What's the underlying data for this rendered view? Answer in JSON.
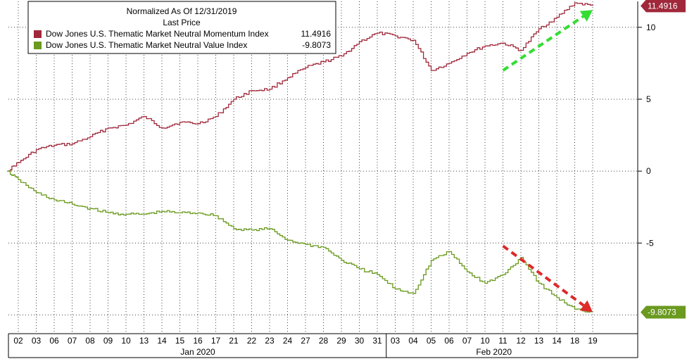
{
  "chart_data": {
    "type": "line",
    "legend": {
      "title": "Normalized As Of 12/31/2019",
      "subtitle": "Last Price",
      "placement": "top-left"
    },
    "x_tick_labels": [
      "02",
      "03",
      "06",
      "07",
      "08",
      "09",
      "10",
      "13",
      "14",
      "15",
      "16",
      "17",
      "21",
      "22",
      "23",
      "24",
      "27",
      "28",
      "29",
      "30",
      "31",
      "03",
      "04",
      "05",
      "06",
      "07",
      "10",
      "11",
      "12",
      "13",
      "14",
      "18",
      "19"
    ],
    "x_tick_dates": [
      "2020-01-02",
      "2020-01-03",
      "2020-01-06",
      "2020-01-07",
      "2020-01-08",
      "2020-01-09",
      "2020-01-10",
      "2020-01-13",
      "2020-01-14",
      "2020-01-15",
      "2020-01-16",
      "2020-01-17",
      "2020-01-21",
      "2020-01-22",
      "2020-01-23",
      "2020-01-24",
      "2020-01-27",
      "2020-01-28",
      "2020-01-29",
      "2020-01-30",
      "2020-01-31",
      "2020-02-03",
      "2020-02-04",
      "2020-02-05",
      "2020-02-06",
      "2020-02-07",
      "2020-02-10",
      "2020-02-11",
      "2020-02-12",
      "2020-02-13",
      "2020-02-14",
      "2020-02-18",
      "2020-02-19"
    ],
    "month_labels": [
      {
        "label": "Jan 2020",
        "start": "2020-01-02",
        "end": "2020-01-31"
      },
      {
        "label": "Feb 2020",
        "start": "2020-02-03",
        "end": "2020-02-19"
      }
    ],
    "y_ticks": [
      10,
      5,
      0,
      -5
    ],
    "ylim": [
      -11.3,
      11.8
    ],
    "grid": true,
    "series": [
      {
        "name": "Dow Jones U.S. Thematic Market Neutral Momentum Index",
        "last": "11.4916",
        "color": "#a0283a",
        "values": [
          [
            "2019-12-31",
            0.0
          ],
          [
            "2020-01-02",
            0.6
          ],
          [
            "2020-01-03",
            1.5
          ],
          [
            "2020-01-06",
            1.8
          ],
          [
            "2020-01-07",
            1.9
          ],
          [
            "2020-01-08",
            2.4
          ],
          [
            "2020-01-09",
            3.0
          ],
          [
            "2020-01-10",
            3.2
          ],
          [
            "2020-01-13",
            3.8
          ],
          [
            "2020-01-14",
            3.0
          ],
          [
            "2020-01-15",
            3.4
          ],
          [
            "2020-01-16",
            3.3
          ],
          [
            "2020-01-17",
            3.8
          ],
          [
            "2020-01-21",
            5.0
          ],
          [
            "2020-01-22",
            5.6
          ],
          [
            "2020-01-23",
            5.7
          ],
          [
            "2020-01-24",
            6.5
          ],
          [
            "2020-01-27",
            7.2
          ],
          [
            "2020-01-28",
            7.6
          ],
          [
            "2020-01-29",
            8.0
          ],
          [
            "2020-01-30",
            9.0
          ],
          [
            "2020-01-31",
            9.6
          ],
          [
            "2020-02-03",
            9.4
          ],
          [
            "2020-02-04",
            9.1
          ],
          [
            "2020-02-05",
            7.0
          ],
          [
            "2020-02-06",
            7.5
          ],
          [
            "2020-02-07",
            8.2
          ],
          [
            "2020-02-10",
            8.7
          ],
          [
            "2020-02-11",
            8.9
          ],
          [
            "2020-02-12",
            8.4
          ],
          [
            "2020-02-13",
            9.9
          ],
          [
            "2020-02-14",
            10.7
          ],
          [
            "2020-02-18",
            11.7
          ],
          [
            "2020-02-19",
            11.49
          ]
        ]
      },
      {
        "name": "Dow Jones U.S. Thematic Market Neutral Value Index",
        "last": "-9.8073",
        "color": "#6a9a1f",
        "values": [
          [
            "2019-12-31",
            0.0
          ],
          [
            "2020-01-02",
            -0.6
          ],
          [
            "2020-01-03",
            -1.5
          ],
          [
            "2020-01-06",
            -2.0
          ],
          [
            "2020-01-07",
            -2.3
          ],
          [
            "2020-01-08",
            -2.6
          ],
          [
            "2020-01-09",
            -2.9
          ],
          [
            "2020-01-10",
            -3.0
          ],
          [
            "2020-01-13",
            -3.0
          ],
          [
            "2020-01-14",
            -2.8
          ],
          [
            "2020-01-15",
            -2.9
          ],
          [
            "2020-01-16",
            -2.9
          ],
          [
            "2020-01-17",
            -3.1
          ],
          [
            "2020-01-21",
            -4.0
          ],
          [
            "2020-01-22",
            -4.1
          ],
          [
            "2020-01-23",
            -4.0
          ],
          [
            "2020-01-24",
            -4.8
          ],
          [
            "2020-01-27",
            -5.1
          ],
          [
            "2020-01-28",
            -5.3
          ],
          [
            "2020-01-29",
            -6.2
          ],
          [
            "2020-01-30",
            -6.8
          ],
          [
            "2020-01-31",
            -7.2
          ],
          [
            "2020-02-03",
            -8.2
          ],
          [
            "2020-02-04",
            -8.5
          ],
          [
            "2020-02-05",
            -6.2
          ],
          [
            "2020-02-06",
            -5.6
          ],
          [
            "2020-02-07",
            -7.0
          ],
          [
            "2020-02-10",
            -7.8
          ],
          [
            "2020-02-11",
            -7.2
          ],
          [
            "2020-02-12",
            -6.0
          ],
          [
            "2020-02-13",
            -7.8
          ],
          [
            "2020-02-14",
            -8.8
          ],
          [
            "2020-02-18",
            -9.6
          ],
          [
            "2020-02-19",
            -9.81
          ]
        ]
      }
    ],
    "annotations": [
      {
        "type": "arrow",
        "style": "dashed",
        "color": "#33dd33",
        "from": [
          "2020-02-11",
          7.0
        ],
        "to": [
          "2020-02-19",
          11.2
        ]
      },
      {
        "type": "arrow",
        "style": "dashed",
        "color": "#dd2a2a",
        "from": [
          "2020-02-11",
          -5.2
        ],
        "to": [
          "2020-02-19",
          -9.8
        ]
      }
    ]
  }
}
